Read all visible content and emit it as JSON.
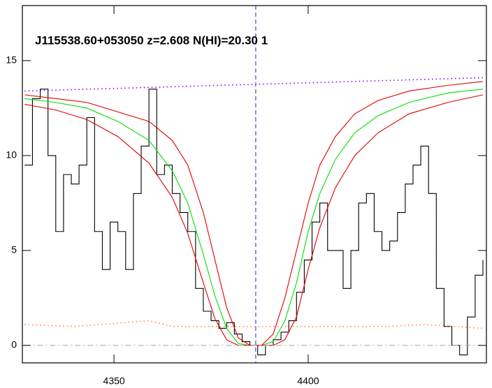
{
  "chart_data": {
    "type": "line",
    "title": "J115538.60+053050 z=2.608 N(HI)=20.30 1",
    "xlim": [
      4326.4,
      4445.9
    ],
    "ylim": [
      -0.92,
      17.9
    ],
    "xticks": [
      4350,
      4400
    ],
    "yticks": [
      0,
      5,
      10,
      15
    ],
    "vline": {
      "value": 4386.5,
      "color": "#2020c0",
      "style": "dash"
    },
    "series": [
      {
        "color": "#000000",
        "style": "step",
        "x": [
          4327,
          4329,
          4331,
          4333,
          4335,
          4337,
          4339,
          4341,
          4343,
          4345,
          4347,
          4349,
          4351,
          4353,
          4355,
          4357,
          4359,
          4361,
          4363,
          4365,
          4367,
          4369,
          4371,
          4373,
          4375,
          4377,
          4379,
          4381,
          4383,
          4385,
          4387,
          4389,
          4391,
          4393,
          4395,
          4397,
          4399,
          4401,
          4403,
          4405,
          4407,
          4409,
          4411,
          4413,
          4415,
          4417,
          4419,
          4421,
          4423,
          4425,
          4427,
          4429,
          4431,
          4433,
          4435,
          4437,
          4439,
          4441,
          4443,
          4445
        ],
        "values": [
          9.5,
          13,
          13.5,
          10,
          6,
          9,
          8.5,
          9.5,
          12,
          6,
          4,
          6.5,
          6,
          4,
          8,
          10.5,
          13.5,
          9,
          9.5,
          8,
          7,
          6,
          3,
          1.8,
          1.3,
          0.9,
          1.2,
          0.6,
          0.2,
          0,
          -0.5,
          0,
          0.3,
          0.7,
          1.3,
          2.8,
          4.5,
          6.5,
          7.5,
          5,
          5,
          3,
          5,
          7.5,
          8,
          6,
          5,
          5.5,
          7,
          8.5,
          9.5,
          10.5,
          8,
          3,
          1,
          0,
          -0.5,
          1.5,
          3.7,
          4.5
        ]
      },
      {
        "color": "#00e000",
        "style": "solid",
        "x": [
          4327,
          4335,
          4343,
          4351,
          4359,
          4365,
          4369,
          4373,
          4376,
          4379,
          4382,
          4385,
          4388,
          4391,
          4394,
          4397,
          4400,
          4403,
          4407,
          4412,
          4418,
          4426,
          4436,
          4445
        ],
        "values": [
          13.0,
          12.8,
          12.5,
          11.8,
          10.8,
          9.2,
          7.5,
          4.8,
          2.6,
          0.9,
          0.1,
          0,
          0,
          0.2,
          1.3,
          3.3,
          6,
          8,
          9.8,
          11.2,
          12.1,
          12.8,
          13.3,
          13.5
        ]
      },
      {
        "color": "#e00000",
        "style": "solid",
        "x": [
          4327,
          4335,
          4343,
          4351,
          4359,
          4365,
          4369,
          4373,
          4376,
          4379,
          4382,
          4385,
          4388,
          4391,
          4394,
          4397,
          4400,
          4403,
          4407,
          4412,
          4418,
          4426,
          4436,
          4445
        ],
        "values": [
          13.2,
          13.0,
          12.8,
          12.3,
          11.8,
          10.8,
          9.5,
          7.0,
          4.5,
          2.0,
          0.4,
          0,
          0,
          0.6,
          2.5,
          5.0,
          7.5,
          9.5,
          11.0,
          12.2,
          12.9,
          13.4,
          13.7,
          13.9
        ]
      },
      {
        "color": "#e00000",
        "style": "solid",
        "x": [
          4327,
          4335,
          4343,
          4351,
          4359,
          4365,
          4369,
          4373,
          4376,
          4379,
          4382,
          4385,
          4388,
          4391,
          4394,
          4397,
          4400,
          4403,
          4407,
          4412,
          4418,
          4426,
          4436,
          4445
        ],
        "values": [
          12.7,
          12.4,
          11.9,
          11.0,
          9.6,
          7.8,
          5.9,
          3.3,
          1.4,
          0.3,
          0,
          0,
          0,
          0,
          0.3,
          1.5,
          4.0,
          6.2,
          8.3,
          10.0,
          11.2,
          12.2,
          12.8,
          13.2
        ]
      },
      {
        "color": "#8000ff",
        "style": "dot",
        "x": [
          4327,
          4445
        ],
        "values": [
          13.4,
          14.1
        ]
      },
      {
        "color": "#ff8040",
        "style": "dot",
        "x": [
          4327,
          4340,
          4359,
          4365,
          4385,
          4400,
          4420,
          4430,
          4445
        ],
        "values": [
          1.1,
          1.0,
          1.3,
          1.0,
          1.0,
          1.0,
          1.0,
          1.1,
          0.9
        ]
      },
      {
        "color": "#aaaaaa",
        "style": "dashdot",
        "x": [
          4327,
          4445
        ],
        "values": [
          0,
          0
        ]
      }
    ]
  }
}
